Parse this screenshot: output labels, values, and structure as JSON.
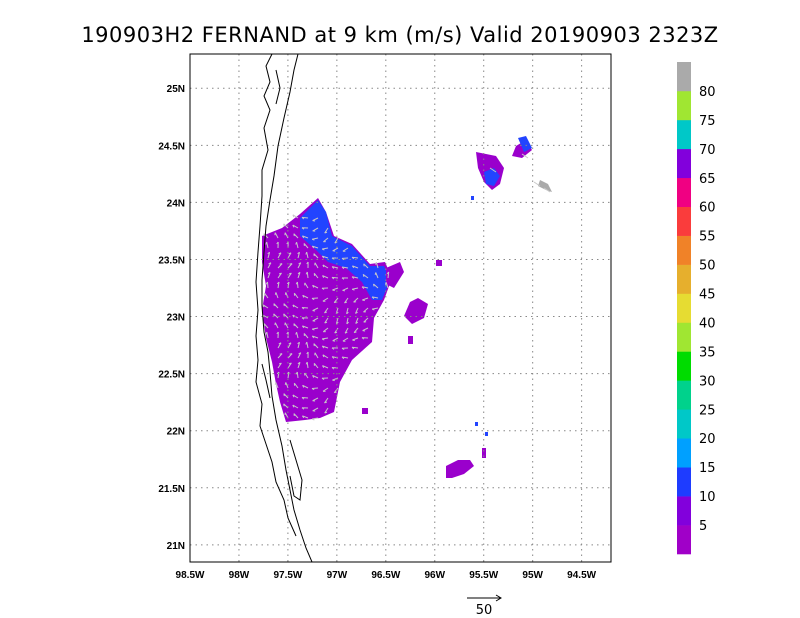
{
  "title": "190903H2 FERNAND at 9 km (m/s) Valid 20190903 2323Z",
  "map": {
    "lon_range": [
      -98.5,
      -94.2
    ],
    "lat_range": [
      20.85,
      25.3
    ],
    "lon_ticks": [
      {
        "value": -98.5,
        "label": "98.5W"
      },
      {
        "value": -98.0,
        "label": "98W"
      },
      {
        "value": -97.5,
        "label": "97.5W"
      },
      {
        "value": -97.0,
        "label": "97W"
      },
      {
        "value": -96.5,
        "label": "96.5W"
      },
      {
        "value": -96.0,
        "label": "96W"
      },
      {
        "value": -95.5,
        "label": "95.5W"
      },
      {
        "value": -95.0,
        "label": "95W"
      },
      {
        "value": -94.5,
        "label": "94.5W"
      }
    ],
    "lat_ticks": [
      {
        "value": 21.0,
        "label": "21N"
      },
      {
        "value": 21.5,
        "label": "21.5N"
      },
      {
        "value": 22.0,
        "label": "22N"
      },
      {
        "value": 22.5,
        "label": "22.5N"
      },
      {
        "value": 23.0,
        "label": "23N"
      },
      {
        "value": 23.5,
        "label": "23.5N"
      },
      {
        "value": 24.0,
        "label": "24N"
      },
      {
        "value": 24.5,
        "label": "24.5N"
      },
      {
        "value": 25.0,
        "label": "25N"
      }
    ],
    "grid": "dotted"
  },
  "colorbar": {
    "labels": [
      "5",
      "10",
      "15",
      "20",
      "25",
      "30",
      "35",
      "40",
      "45",
      "50",
      "55",
      "60",
      "65",
      "70",
      "75",
      "80"
    ],
    "colors": [
      "#a000c8",
      "#8200dc",
      "#1e3cff",
      "#00a0ff",
      "#00c8c8",
      "#00d28c",
      "#00dc00",
      "#a0e632",
      "#e6dc32",
      "#e6af2d",
      "#f08228",
      "#fa3c3c",
      "#f00082",
      "#8200dc",
      "#00c8c8",
      "#a0e632",
      "#aaaaaa"
    ]
  },
  "reference_vector": {
    "label": "50"
  },
  "wind_field": {
    "main_color": "#9a00cc",
    "blue_color": "#2244ff",
    "arrow_color": "#c8c8c8"
  }
}
